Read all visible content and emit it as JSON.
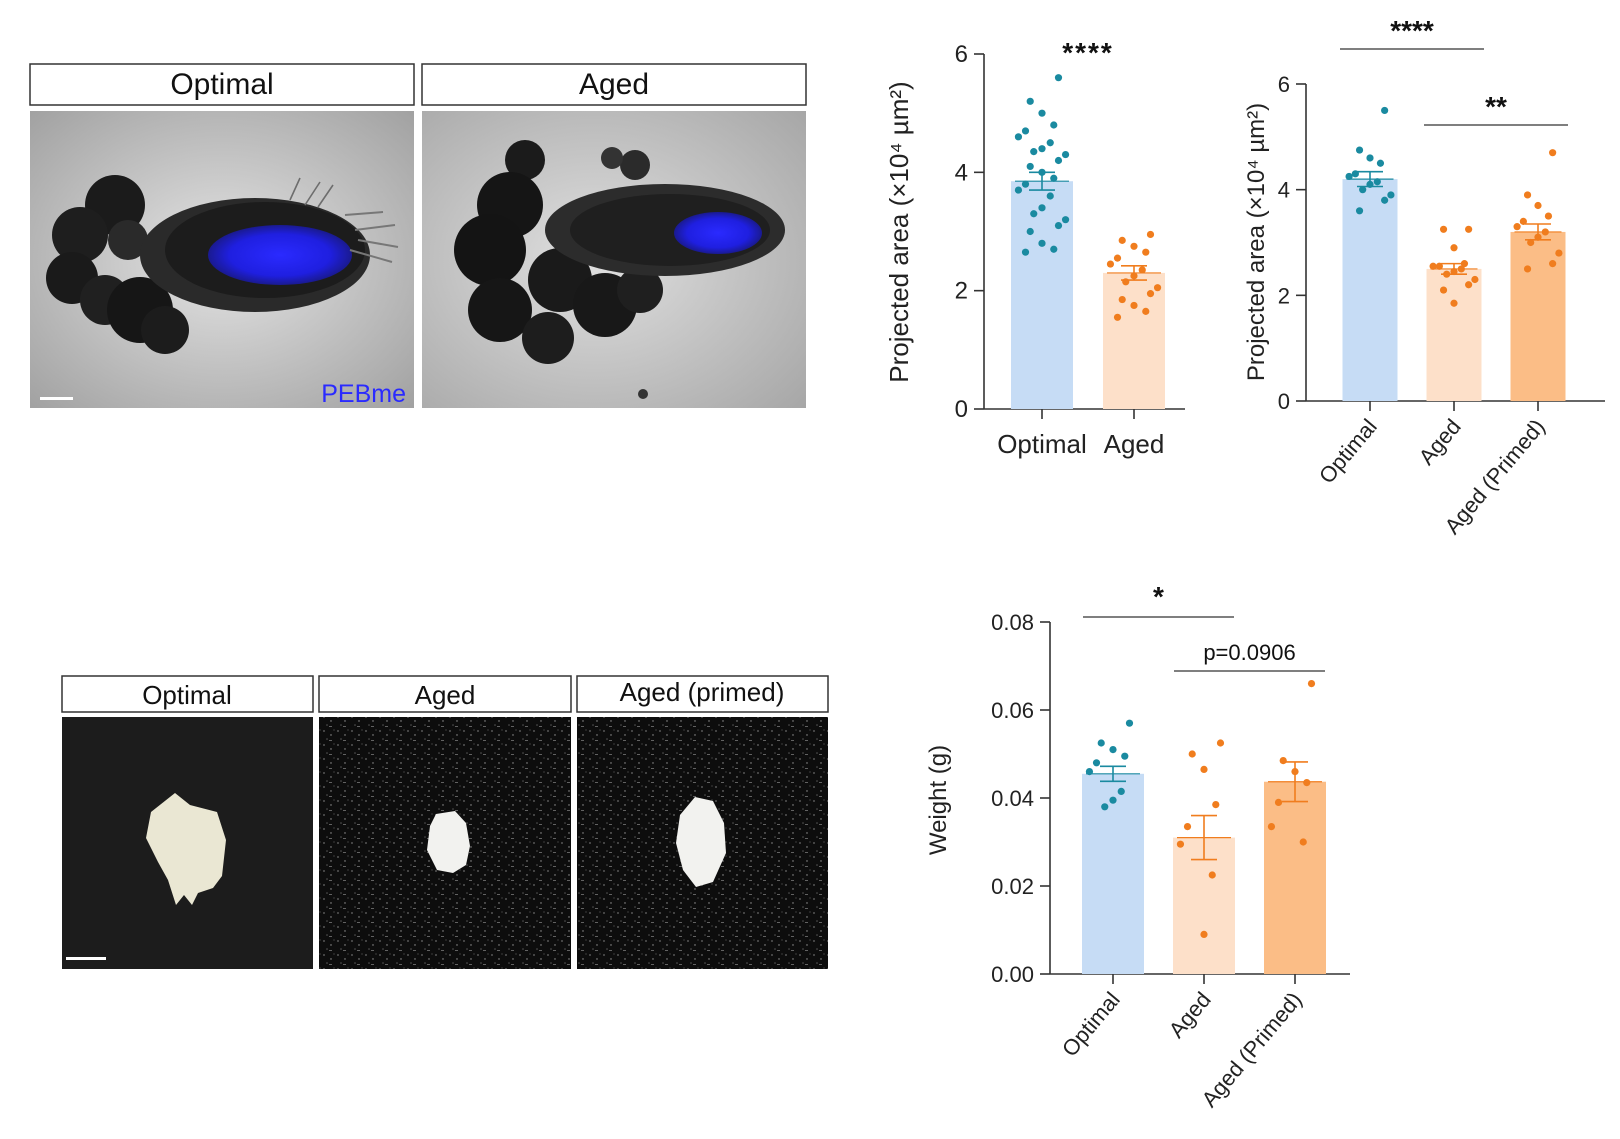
{
  "panels": {
    "top_labels": [
      "Optimal",
      "Aged"
    ],
    "top_fluor_label": "PEBme",
    "bottom_labels": [
      "Optimal",
      "Aged",
      "Aged (primed)"
    ]
  },
  "colors": {
    "optimal_bar": "#c6dcf5",
    "aged_bar": "#fde0c9",
    "primed_bar": "#fbbd86",
    "optimal_dot": "#1a8aa0",
    "aged_dot": "#f07d1e",
    "fluor": "#2a2aff",
    "axis": "#333333"
  },
  "chart_data": [
    {
      "type": "bar",
      "ylabel": "Projected area (×10⁴ µm²)",
      "categories": [
        "Optimal",
        "Aged"
      ],
      "values": [
        3.85,
        2.3
      ],
      "sem": [
        0.15,
        0.12
      ],
      "ylim": [
        0,
        6
      ],
      "yticks": [
        "0",
        "2",
        "4",
        "6"
      ],
      "points": [
        [
          5.6,
          5.2,
          5.0,
          4.8,
          4.7,
          4.6,
          4.5,
          4.4,
          4.35,
          4.3,
          4.2,
          4.1,
          4.0,
          3.9,
          3.8,
          3.7,
          3.6,
          3.4,
          3.3,
          3.2,
          3.1,
          3.0,
          2.8,
          2.7,
          2.65
        ],
        [
          2.95,
          2.85,
          2.75,
          2.65,
          2.55,
          2.45,
          2.35,
          2.25,
          2.15,
          2.05,
          1.95,
          1.85,
          1.75,
          1.65,
          1.55
        ]
      ],
      "significance": [
        {
          "from": 0,
          "to": 1,
          "label": "****",
          "line": false
        }
      ]
    },
    {
      "type": "bar",
      "ylabel": "Projected area (×10⁴ µm²)",
      "categories": [
        "Optimal",
        "Aged",
        "Aged (Primed)"
      ],
      "values": [
        4.2,
        2.5,
        3.2
      ],
      "sem": [
        0.14,
        0.1,
        0.15
      ],
      "ylim": [
        0,
        6
      ],
      "yticks": [
        "0",
        "2",
        "4",
        "6"
      ],
      "points": [
        [
          5.5,
          4.75,
          4.6,
          4.5,
          4.3,
          4.25,
          4.15,
          4.1,
          4.0,
          3.9,
          3.8,
          3.6
        ],
        [
          3.25,
          3.25,
          2.9,
          2.6,
          2.55,
          2.55,
          2.5,
          2.45,
          2.4,
          2.3,
          2.2,
          2.1,
          1.85
        ],
        [
          4.7,
          3.9,
          3.7,
          3.5,
          3.4,
          3.3,
          3.2,
          3.1,
          3.0,
          2.8,
          2.6,
          2.5
        ]
      ],
      "significance": [
        {
          "from": 0,
          "to": 1,
          "label": "****",
          "line": true
        },
        {
          "from": 1,
          "to": 2,
          "label": "**",
          "line": true
        }
      ]
    },
    {
      "type": "bar",
      "ylabel": "Weight (g)",
      "categories": [
        "Optimal",
        "Aged",
        "Aged (Primed)"
      ],
      "values": [
        0.0455,
        0.031,
        0.0437
      ],
      "sem": [
        0.0017,
        0.005,
        0.0045
      ],
      "ylim": [
        0,
        0.08
      ],
      "yticks": [
        "0.00",
        "0.02",
        "0.04",
        "0.06",
        "0.08"
      ],
      "points": [
        [
          0.057,
          0.0525,
          0.051,
          0.0495,
          0.048,
          0.046,
          0.0415,
          0.0395,
          0.038
        ],
        [
          0.0525,
          0.05,
          0.0465,
          0.0385,
          0.0335,
          0.0295,
          0.0225,
          0.009
        ],
        [
          0.066,
          0.0485,
          0.046,
          0.0435,
          0.039,
          0.0335,
          0.03
        ]
      ],
      "significance": [
        {
          "from": 0,
          "to": 1,
          "label": "*",
          "line": true
        },
        {
          "from": 1,
          "to": 2,
          "label": "p=0.0906",
          "line": true
        }
      ]
    }
  ]
}
